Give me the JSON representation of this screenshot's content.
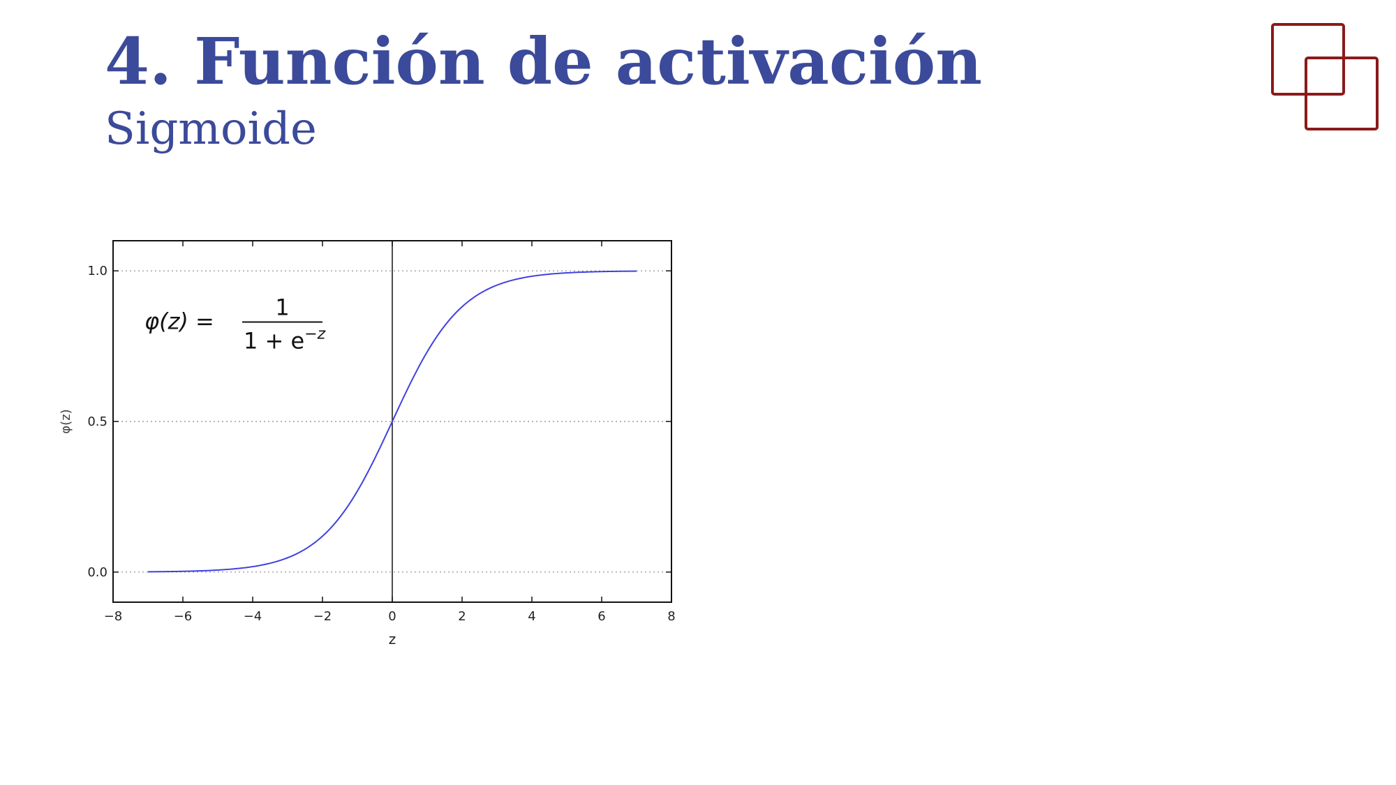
{
  "slide": {
    "title": "4. Función de activación",
    "subtitle": "Sigmoide"
  },
  "colors": {
    "title": "#3b4a9a",
    "logo": "#8b1a1a",
    "curve": "#4040e0",
    "axis": "#111111",
    "grid": "#888888"
  },
  "logo": {
    "icon": "overlapping-squares-icon"
  },
  "chart_data": {
    "type": "line",
    "title": "",
    "xlabel": "z",
    "ylabel": "φ(z)",
    "xlim": [
      -8,
      8
    ],
    "ylim": [
      -0.1,
      1.1
    ],
    "xticks": [
      -8,
      -6,
      -4,
      -2,
      0,
      2,
      4,
      6,
      8
    ],
    "xtick_labels": [
      "−8",
      "−6",
      "−4",
      "−2",
      "0",
      "2",
      "4",
      "6",
      "8"
    ],
    "yticks": [
      0.0,
      0.5,
      1.0
    ],
    "ytick_labels": [
      "0.0",
      "0.5",
      "1.0"
    ],
    "grid": "horizontal-dotted",
    "vertical_line_at": 0,
    "annotation": {
      "lhs": "φ(z) =",
      "numerator": "1",
      "denominator": "1 + e",
      "exponent": "−z"
    },
    "series": [
      {
        "function": "sigmoid",
        "x": [
          -7,
          -6,
          -5,
          -4,
          -3,
          -2,
          -1,
          0,
          1,
          2,
          3,
          4,
          5,
          6,
          7
        ],
        "values": [
          0.001,
          0.002,
          0.007,
          0.018,
          0.047,
          0.119,
          0.269,
          0.5,
          0.731,
          0.881,
          0.953,
          0.982,
          0.993,
          0.998,
          0.999
        ]
      }
    ]
  }
}
